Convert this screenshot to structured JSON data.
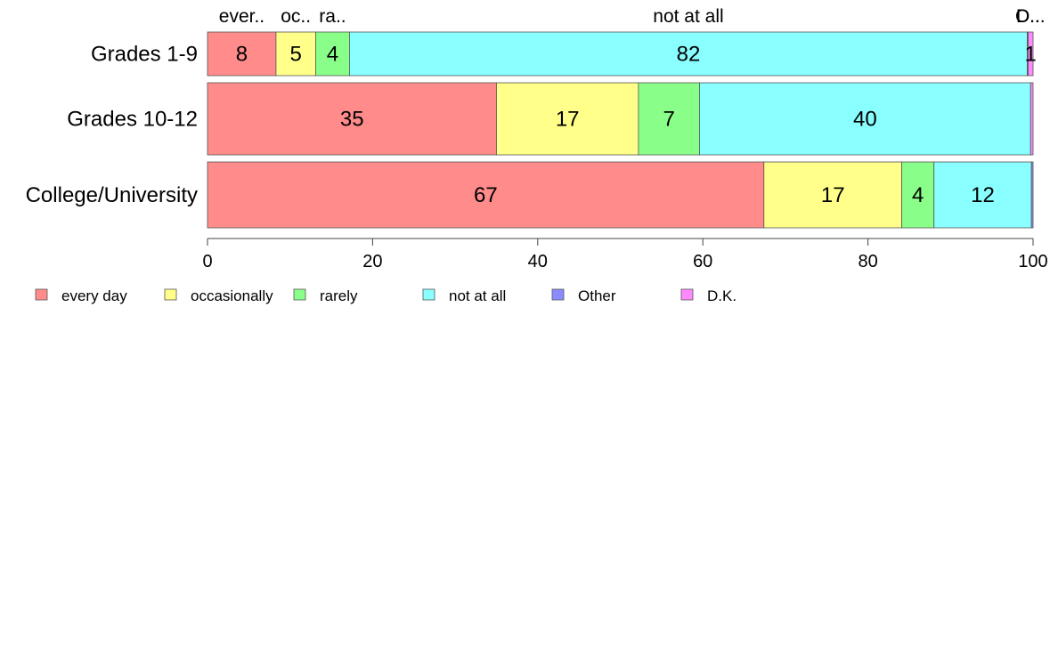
{
  "chart_data": {
    "type": "bar",
    "orientation": "horizontal",
    "stacked": true,
    "categories": [
      "Grades 1-9",
      "Grades 10-12",
      "College/University"
    ],
    "series": [
      {
        "name": "every day",
        "color": "#FF8B8B",
        "values": [
          8.3,
          35.0,
          67.4
        ],
        "labels": [
          "8",
          "35",
          "67"
        ]
      },
      {
        "name": "occasionally",
        "color": "#FFFF89",
        "values": [
          4.8,
          17.2,
          16.7
        ],
        "labels": [
          "5",
          "17",
          "17"
        ]
      },
      {
        "name": "rarely",
        "color": "#89FF89",
        "values": [
          4.1,
          7.4,
          3.9
        ],
        "labels": [
          "4",
          "7",
          "4"
        ]
      },
      {
        "name": "not at all",
        "color": "#89FFFF",
        "values": [
          82.1,
          40.1,
          11.8
        ],
        "labels": [
          "82",
          "40",
          "12"
        ]
      },
      {
        "name": "Other",
        "color": "#8B8BFF",
        "values": [
          0.1,
          0.0,
          0.2
        ],
        "labels": [
          "",
          "",
          ""
        ]
      },
      {
        "name": "D.K.",
        "color": "#FF89FF",
        "values": [
          0.6,
          0.3,
          0.0
        ],
        "labels": [
          "1",
          "",
          ""
        ]
      }
    ],
    "top_labels": [
      "ever..",
      "oc..",
      "ra..",
      "not at all",
      "O..",
      "D..."
    ],
    "xlim": [
      0,
      100
    ],
    "xticks": [
      "0",
      "20",
      "40",
      "60",
      "80",
      "100"
    ],
    "xtick_values": [
      0,
      20,
      40,
      60,
      80,
      100
    ],
    "grid": false,
    "legend": {
      "position": "bottom",
      "entries": [
        "every day",
        "occasionally",
        "rarely",
        "not at all",
        "Other",
        "D.K."
      ]
    }
  }
}
